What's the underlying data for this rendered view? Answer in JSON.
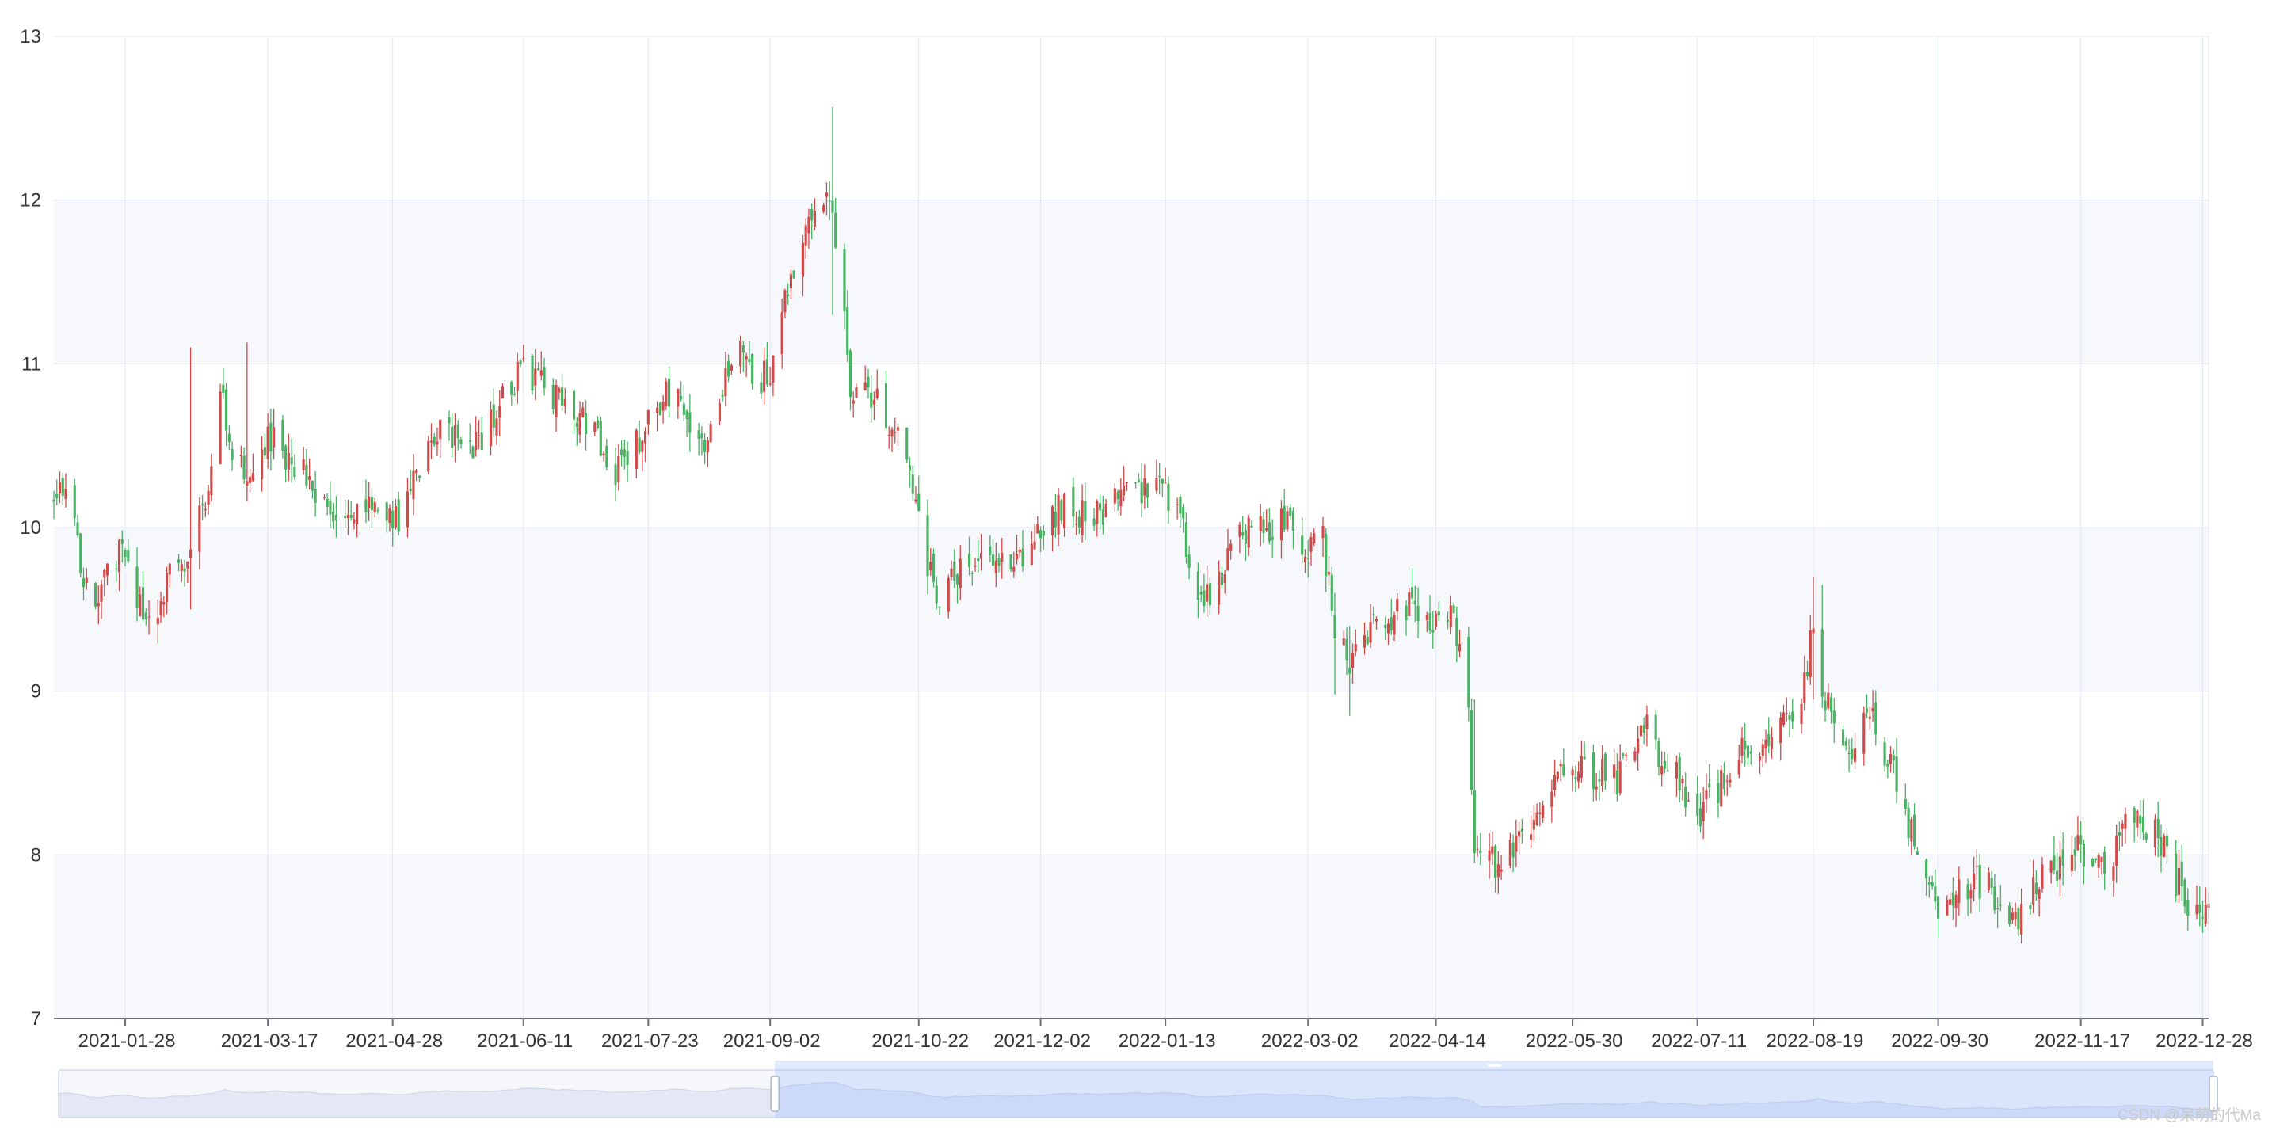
{
  "chart_data": {
    "type": "candlestick",
    "title": "",
    "xlabel": "",
    "ylabel": "",
    "ylim": [
      7,
      13
    ],
    "y_ticks": [
      "7",
      "8",
      "9",
      "10",
      "11",
      "12",
      "13"
    ],
    "x_tick_labels": [
      "2021-01-28",
      "2021-03-17",
      "2021-04-28",
      "2021-06-11",
      "2021-07-23",
      "2021-09-02",
      "2021-10-22",
      "2021-12-02",
      "2022-01-13",
      "2022-03-02",
      "2022-04-14",
      "2022-05-30",
      "2022-07-11",
      "2022-08-19",
      "2022-09-30",
      "2022-11-17",
      "2022-12-28"
    ],
    "date_range": [
      "2021-01-04",
      "2022-12-30"
    ],
    "grid": true,
    "split_area": true,
    "colors": {
      "up": "#d14a4a",
      "down": "#47b262",
      "grid": "#e0e6f1",
      "band": "#f7f8fc"
    },
    "close_path": [
      [
        "2021-01-04",
        10.15
      ],
      [
        "2021-01-08",
        10.25
      ],
      [
        "2021-01-13",
        9.8
      ],
      [
        "2021-01-18",
        9.45
      ],
      [
        "2021-01-22",
        9.7
      ],
      [
        "2021-01-27",
        9.85
      ],
      [
        "2021-02-01",
        9.6
      ],
      [
        "2021-02-05",
        9.4
      ],
      [
        "2021-02-10",
        9.65
      ],
      [
        "2021-02-19",
        9.8
      ],
      [
        "2021-02-24",
        10.2
      ],
      [
        "2021-03-01",
        10.8
      ],
      [
        "2021-03-05",
        10.5
      ],
      [
        "2021-03-10",
        10.3
      ],
      [
        "2021-03-15",
        10.45
      ],
      [
        "2021-03-19",
        10.6
      ],
      [
        "2021-03-24",
        10.4
      ],
      [
        "2021-03-30",
        10.3
      ],
      [
        "2021-04-06",
        10.15
      ],
      [
        "2021-04-13",
        10.05
      ],
      [
        "2021-04-21",
        10.1
      ],
      [
        "2021-04-28",
        10.0
      ],
      [
        "2021-05-06",
        10.3
      ],
      [
        "2021-05-12",
        10.55
      ],
      [
        "2021-05-19",
        10.6
      ],
      [
        "2021-05-26",
        10.5
      ],
      [
        "2021-06-02",
        10.75
      ],
      [
        "2021-06-09",
        10.95
      ],
      [
        "2021-06-16",
        10.9
      ],
      [
        "2021-06-23",
        10.8
      ],
      [
        "2021-06-30",
        10.7
      ],
      [
        "2021-07-07",
        10.5
      ],
      [
        "2021-07-12",
        10.35
      ],
      [
        "2021-07-19",
        10.5
      ],
      [
        "2021-07-26",
        10.7
      ],
      [
        "2021-08-02",
        10.9
      ],
      [
        "2021-08-06",
        10.65
      ],
      [
        "2021-08-11",
        10.55
      ],
      [
        "2021-08-17",
        10.85
      ],
      [
        "2021-08-23",
        11.1
      ],
      [
        "2021-08-30",
        10.9
      ],
      [
        "2021-09-03",
        10.95
      ],
      [
        "2021-09-08",
        11.45
      ],
      [
        "2021-09-13",
        11.7
      ],
      [
        "2021-09-16",
        11.9
      ],
      [
        "2021-09-23",
        12.0
      ],
      [
        "2021-09-29",
        10.9
      ],
      [
        "2021-10-11",
        10.7
      ],
      [
        "2021-10-15",
        10.55
      ],
      [
        "2021-10-20",
        10.3
      ],
      [
        "2021-10-25",
        9.8
      ],
      [
        "2021-10-29",
        9.55
      ],
      [
        "2021-11-04",
        9.7
      ],
      [
        "2021-11-10",
        9.85
      ],
      [
        "2021-11-16",
        9.8
      ],
      [
        "2021-11-22",
        9.75
      ],
      [
        "2021-11-29",
        9.85
      ],
      [
        "2021-12-03",
        10.0
      ],
      [
        "2021-12-09",
        10.15
      ],
      [
        "2021-12-14",
        10.1
      ],
      [
        "2021-12-20",
        10.05
      ],
      [
        "2021-12-24",
        10.15
      ],
      [
        "2021-12-30",
        10.2
      ],
      [
        "2022-01-06",
        10.2
      ],
      [
        "2022-01-12",
        10.25
      ],
      [
        "2022-01-17",
        10.15
      ],
      [
        "2022-01-21",
        9.75
      ],
      [
        "2022-01-26",
        9.55
      ],
      [
        "2022-02-08",
        9.95
      ],
      [
        "2022-02-11",
        10.05
      ],
      [
        "2022-02-17",
        10.0
      ],
      [
        "2022-02-23",
        10.05
      ],
      [
        "2022-03-02",
        9.9
      ],
      [
        "2022-03-07",
        9.95
      ],
      [
        "2022-03-11",
        9.4
      ],
      [
        "2022-03-16",
        9.1
      ],
      [
        "2022-03-21",
        9.35
      ],
      [
        "2022-03-25",
        9.5
      ],
      [
        "2022-03-31",
        9.45
      ],
      [
        "2022-04-07",
        9.55
      ],
      [
        "2022-04-13",
        9.4
      ],
      [
        "2022-04-20",
        9.45
      ],
      [
        "2022-04-25",
        8.9
      ],
      [
        "2022-04-27",
        8.1
      ],
      [
        "2022-05-05",
        7.95
      ],
      [
        "2022-05-10",
        8.05
      ],
      [
        "2022-05-16",
        8.2
      ],
      [
        "2022-05-20",
        8.3
      ],
      [
        "2022-05-26",
        8.45
      ],
      [
        "2022-05-31",
        8.55
      ],
      [
        "2022-06-07",
        8.5
      ],
      [
        "2022-06-14",
        8.45
      ],
      [
        "2022-06-20",
        8.6
      ],
      [
        "2022-06-24",
        8.8
      ],
      [
        "2022-06-29",
        8.55
      ],
      [
        "2022-07-05",
        8.45
      ],
      [
        "2022-07-11",
        8.15
      ],
      [
        "2022-07-15",
        8.35
      ],
      [
        "2022-07-21",
        8.5
      ],
      [
        "2022-07-27",
        8.65
      ],
      [
        "2022-08-02",
        8.6
      ],
      [
        "2022-08-08",
        8.75
      ],
      [
        "2022-08-15",
        8.9
      ],
      [
        "2022-08-19",
        9.4
      ],
      [
        "2022-08-22",
        9.05
      ],
      [
        "2022-08-26",
        8.75
      ],
      [
        "2022-09-01",
        8.6
      ],
      [
        "2022-09-07",
        8.85
      ],
      [
        "2022-09-14",
        8.55
      ],
      [
        "2022-09-20",
        8.2
      ],
      [
        "2022-09-23",
        7.95
      ],
      [
        "2022-09-29",
        7.7
      ],
      [
        "2022-10-11",
        7.85
      ],
      [
        "2022-10-17",
        7.8
      ],
      [
        "2022-10-21",
        7.65
      ],
      [
        "2022-10-25",
        7.55
      ],
      [
        "2022-10-31",
        7.75
      ],
      [
        "2022-11-04",
        7.85
      ],
      [
        "2022-11-10",
        7.95
      ],
      [
        "2022-11-16",
        8.05
      ],
      [
        "2022-11-22",
        8.0
      ],
      [
        "2022-11-28",
        7.95
      ],
      [
        "2022-12-02",
        8.2
      ],
      [
        "2022-12-08",
        8.2
      ],
      [
        "2022-12-13",
        8.15
      ],
      [
        "2022-12-19",
        7.85
      ],
      [
        "2022-12-23",
        7.7
      ],
      [
        "2022-12-30",
        7.65
      ]
    ],
    "spikes": [
      [
        "2021-02-19",
        9.5,
        11.1
      ],
      [
        "2021-03-10",
        10.3,
        11.13
      ],
      [
        "2021-09-23",
        11.3,
        12.57
      ],
      [
        "2022-08-19",
        8.95,
        9.7
      ],
      [
        "2022-08-22",
        8.9,
        9.65
      ],
      [
        "2022-03-11",
        8.98,
        9.6
      ],
      [
        "2022-03-16",
        8.85,
        9.4
      ],
      [
        "2022-04-27",
        7.95,
        8.95
      ]
    ],
    "data_zoom": {
      "start_date": "2021-09-02",
      "end_date": "2022-12-30"
    }
  },
  "watermark": "CSDN @呆萌的代Ma"
}
